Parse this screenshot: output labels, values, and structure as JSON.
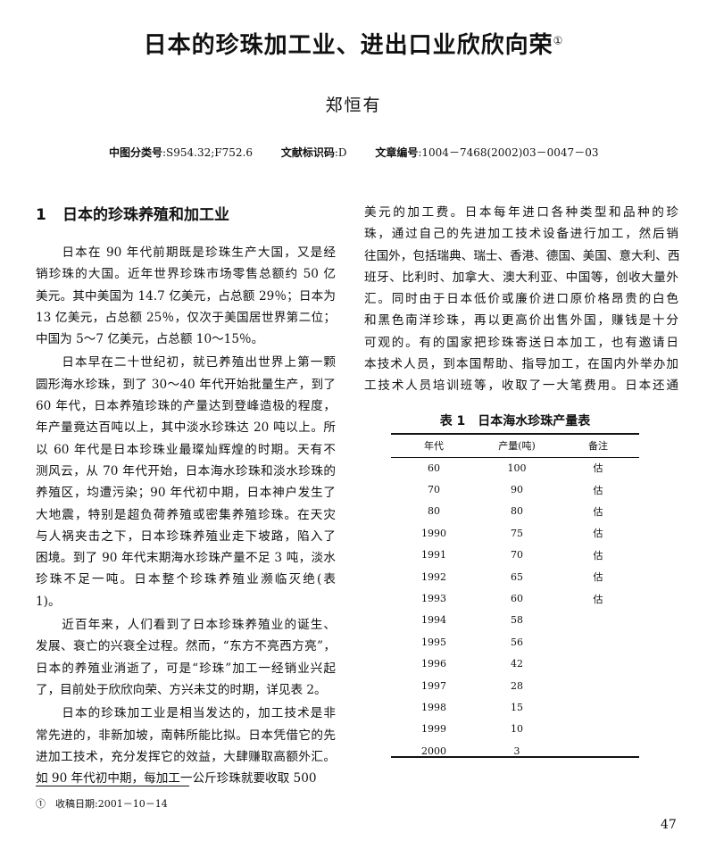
{
  "title": "日本的珍珠加工业、进出口业欣欣向荣",
  "title_note": "①",
  "author": "郑恒有",
  "meta": {
    "clc_label": "中图分类号",
    "clc_value": ":S954.32;F752.6",
    "doc_label": "文献标识码",
    "doc_value": ":D",
    "article_label": "文章编号",
    "article_value": ":1004－7468(2002)03－0047－03"
  },
  "section": {
    "number": "1",
    "title": "日本的珍珠养殖和加工业"
  },
  "left_column": [
    [
      "　　日本在 90 年代前期既是珍珠生产大国，又是经",
      "销珍珠的大国。近年世界珍珠市场零售总额约 50 亿",
      "美元。其中美国为 14.7 亿美元，占总额 29％；日本为",
      "13 亿美元，占总额 25％，仅次于美国居世界第二位；",
      "中国为 5～7 亿美元，占总额 10～15％。"
    ],
    [
      "　　日本早在二十世纪初，就已养殖出世界上第一颗",
      "圆形海水珍珠，到了 30～40 年代开始批量生产，到了",
      "60 年代，日本养殖珍珠的产量达到登峰造极的程度，",
      "年产量竟达百吨以上，其中淡水珍珠达 20 吨以上。所",
      "以 60 年代是日本珍珠业最璨灿辉煌的时期。天有不",
      "测风云，从 70 年代开始，日本海水珍珠和淡水珍珠的",
      "养殖区，均遭污染；90 年代初中期，日本神户发生了",
      "大地震，特别是超负荷养殖或密集养殖珍珠。在天灾",
      "与人祸夹击之下，日本珍珠养殖业走下坡路，陷入了",
      "困境。到了 90 年代末期海水珍珠产量不足 3 吨，淡水",
      "珍珠不足一吨。日本整个珍珠养殖业濒临灭绝(表",
      "1)。"
    ],
    [
      "　　近百年来，人们看到了日本珍珠养殖业的诞生、",
      "发展、衰亡的兴衰全过程。然而，“东方不亮西方亮”，",
      "日本的养殖业消逝了，可是“珍珠”加工一经销业兴起",
      "了，目前处于欣欣向荣、方兴未艾的时期，详见表 2。"
    ],
    [
      "　　日本的珍珠加工业是相当发达的，加工技术是非",
      "常先进的，非新加坡，南韩所能比拟。日本凭借它的先",
      "进加工技术，充分发挥它的效益，大肆赚取高额外汇。",
      "如 90 年代初中期，每加工一公斤珍珠就要收取 500"
    ]
  ],
  "right_column": [
    [
      "美元的加工费。日本每年进口各种类型和品种的珍",
      "珠，通过自己的先进加工技术设备进行加工，然后销",
      "往国外，包括瑞典、瑞士、香港、德国、美国、意大利、西",
      "班牙、比利时、加拿大、澳大利亚、中国等，创收大量外",
      "汇。同时由于日本低价或廉价进口原价格昂贵的白色",
      "和黑色南洋珍珠，再以更高价出售外国，赚钱是十分",
      "可观的。有的国家把珍珠寄送日本加工，也有邀请日",
      "本技术人员，到本国帮助、指导加工，在国内外举办加",
      "工技术人员培训班等，收取了一大笔费用。日本还通"
    ]
  ],
  "table": {
    "title": "表 1　日本海水珍珠产量表",
    "headers": [
      "年代",
      "产量(吨)",
      "备注"
    ],
    "rows": [
      [
        "60",
        "100",
        "估"
      ],
      [
        "70",
        "90",
        "估"
      ],
      [
        "80",
        "80",
        "估"
      ],
      [
        "1990",
        "75",
        "估"
      ],
      [
        "1991",
        "70",
        "估"
      ],
      [
        "1992",
        "65",
        "估"
      ],
      [
        "1993",
        "60",
        "估"
      ],
      [
        "1994",
        "58",
        ""
      ],
      [
        "1995",
        "56",
        ""
      ],
      [
        "1996",
        "42",
        ""
      ],
      [
        "1997",
        "28",
        ""
      ],
      [
        "1998",
        "15",
        ""
      ],
      [
        "1999",
        "10",
        ""
      ],
      [
        "2000",
        "3",
        ""
      ]
    ]
  },
  "footnote": "①　收稿日期:2001－10－14",
  "page_number": "47"
}
